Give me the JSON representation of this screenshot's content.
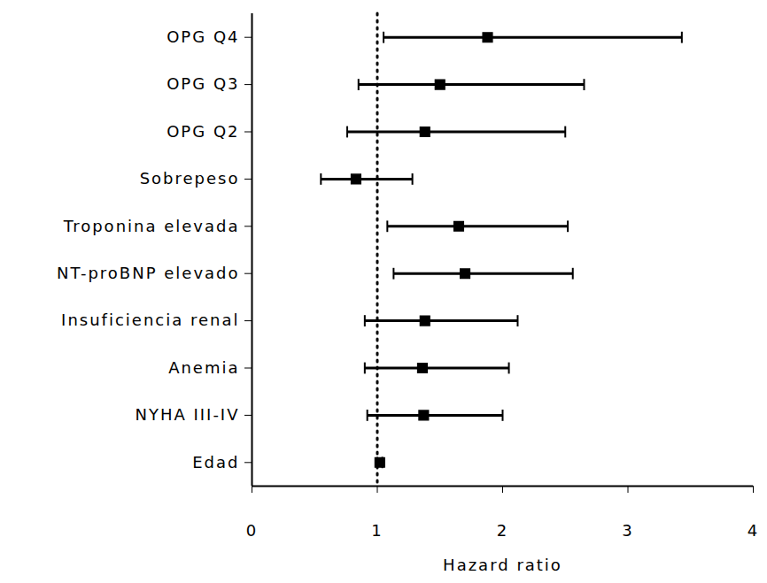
{
  "chart_data": {
    "type": "forest",
    "x_label": "Hazard ratio",
    "categories": [
      "OPG Q4",
      "OPG Q3",
      "OPG Q2",
      "Sobrepeso",
      "Troponina elevada",
      "NT-proBNP elevado",
      "Insuficiencia renal",
      "Anemia",
      "NYHA III-IV",
      "Edad"
    ],
    "values": [
      1.88,
      1.5,
      1.38,
      0.83,
      1.65,
      1.7,
      1.38,
      1.36,
      1.37,
      1.02
    ],
    "ci_low": [
      1.05,
      0.85,
      0.76,
      0.55,
      1.08,
      1.13,
      0.9,
      0.9,
      0.92,
      1.0
    ],
    "ci_high": [
      3.43,
      2.65,
      2.5,
      1.28,
      2.52,
      2.56,
      2.12,
      2.05,
      2.0,
      1.04
    ],
    "reference_line": 1,
    "orientation": "horizontal",
    "color": "#000000",
    "marker": "square",
    "xlim": [
      0,
      4
    ],
    "xticks": [
      0,
      1,
      2,
      3,
      4
    ]
  }
}
